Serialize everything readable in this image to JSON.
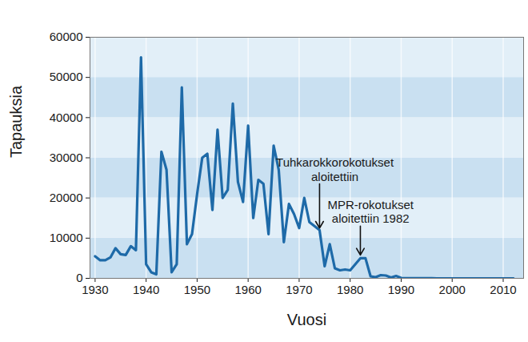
{
  "chart_data": {
    "type": "line",
    "x_label": "Vuosi",
    "y_label": "Tapauksia",
    "x": [
      1930,
      1931,
      1932,
      1933,
      1934,
      1935,
      1936,
      1937,
      1938,
      1939,
      1940,
      1941,
      1942,
      1943,
      1944,
      1945,
      1946,
      1947,
      1948,
      1949,
      1950,
      1951,
      1952,
      1953,
      1954,
      1955,
      1956,
      1957,
      1958,
      1959,
      1960,
      1961,
      1962,
      1963,
      1964,
      1965,
      1966,
      1967,
      1968,
      1969,
      1970,
      1971,
      1972,
      1973,
      1974,
      1975,
      1976,
      1977,
      1978,
      1979,
      1980,
      1981,
      1982,
      1983,
      1984,
      1985,
      1986,
      1987,
      1988,
      1989,
      1990,
      1991,
      1992,
      1993,
      1994,
      1995,
      1996,
      1997,
      1998,
      1999,
      2000,
      2001,
      2002,
      2003,
      2004,
      2005,
      2006,
      2007,
      2008,
      2009,
      2010,
      2011,
      2012
    ],
    "values": [
      5500,
      4500,
      4500,
      5200,
      7500,
      6000,
      5800,
      8000,
      7000,
      55000,
      3500,
      1500,
      1000,
      31500,
      27000,
      1500,
      3500,
      47500,
      8500,
      11000,
      21000,
      30000,
      31000,
      17000,
      37000,
      20000,
      22000,
      43500,
      24000,
      19000,
      38000,
      15000,
      24500,
      23500,
      11000,
      33000,
      27000,
      9000,
      18500,
      16000,
      12500,
      20000,
      14000,
      13000,
      12000,
      3000,
      8500,
      2500,
      2000,
      2200,
      2000,
      3500,
      5000,
      5000,
      500,
      300,
      800,
      700,
      200,
      600,
      100,
      50,
      30,
      20,
      10,
      10,
      10,
      0,
      0,
      0,
      0,
      0,
      0,
      0,
      0,
      0,
      0,
      0,
      0,
      0,
      0,
      0,
      0
    ],
    "color": "#1e6aa8",
    "xlim": [
      1929,
      2014
    ],
    "ylim": [
      0,
      60000
    ],
    "xticks": [
      1930,
      1940,
      1950,
      1960,
      1970,
      1980,
      1990,
      2000,
      2010
    ],
    "yticks": [
      0,
      10000,
      20000,
      30000,
      40000,
      50000,
      60000
    ],
    "grid": true,
    "annotations": [
      {
        "text": "Tuhkarokkorokotukset\naloitettiin",
        "x": 1974,
        "y": 12500,
        "y_from": 23500,
        "text_x": 1977
      },
      {
        "text": "MPR-rokotukset\naloitettiin 1982",
        "x": 1982,
        "y": 5800,
        "y_from": 13000,
        "text_x": 1984
      }
    ]
  }
}
